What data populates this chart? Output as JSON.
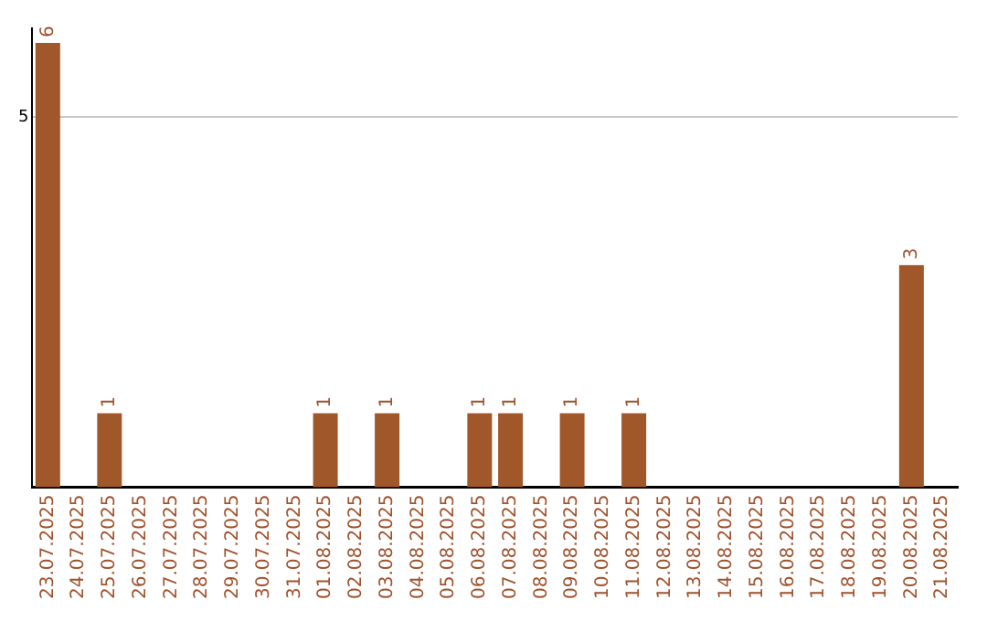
{
  "chart_data": {
    "type": "bar",
    "categories": [
      "23.07.2025",
      "24.07.2025",
      "25.07.2025",
      "26.07.2025",
      "27.07.2025",
      "28.07.2025",
      "29.07.2025",
      "30.07.2025",
      "31.07.2025",
      "01.08.2025",
      "02.08.2025",
      "03.08.2025",
      "04.08.2025",
      "05.08.2025",
      "06.08.2025",
      "07.08.2025",
      "08.08.2025",
      "09.08.2025",
      "10.08.2025",
      "11.08.2025",
      "12.08.2025",
      "13.08.2025",
      "14.08.2025",
      "15.08.2025",
      "16.08.2025",
      "17.08.2025",
      "18.08.2025",
      "19.08.2025",
      "20.08.2025",
      "21.08.2025"
    ],
    "values": [
      6,
      0,
      1,
      0,
      0,
      0,
      0,
      0,
      0,
      1,
      0,
      1,
      0,
      0,
      1,
      1,
      0,
      1,
      0,
      1,
      0,
      0,
      0,
      0,
      0,
      0,
      0,
      0,
      3,
      0
    ],
    "value_labels": [
      "6",
      null,
      "1",
      null,
      null,
      null,
      null,
      null,
      null,
      "1",
      null,
      "1",
      null,
      null,
      "1",
      "1",
      null,
      "1",
      null,
      "1",
      null,
      null,
      null,
      null,
      null,
      null,
      null,
      null,
      "3",
      null
    ],
    "color": "#a0582a",
    "ylim": [
      0,
      6.2
    ],
    "yticks": [
      5
    ],
    "grid": "y",
    "legend": false
  }
}
